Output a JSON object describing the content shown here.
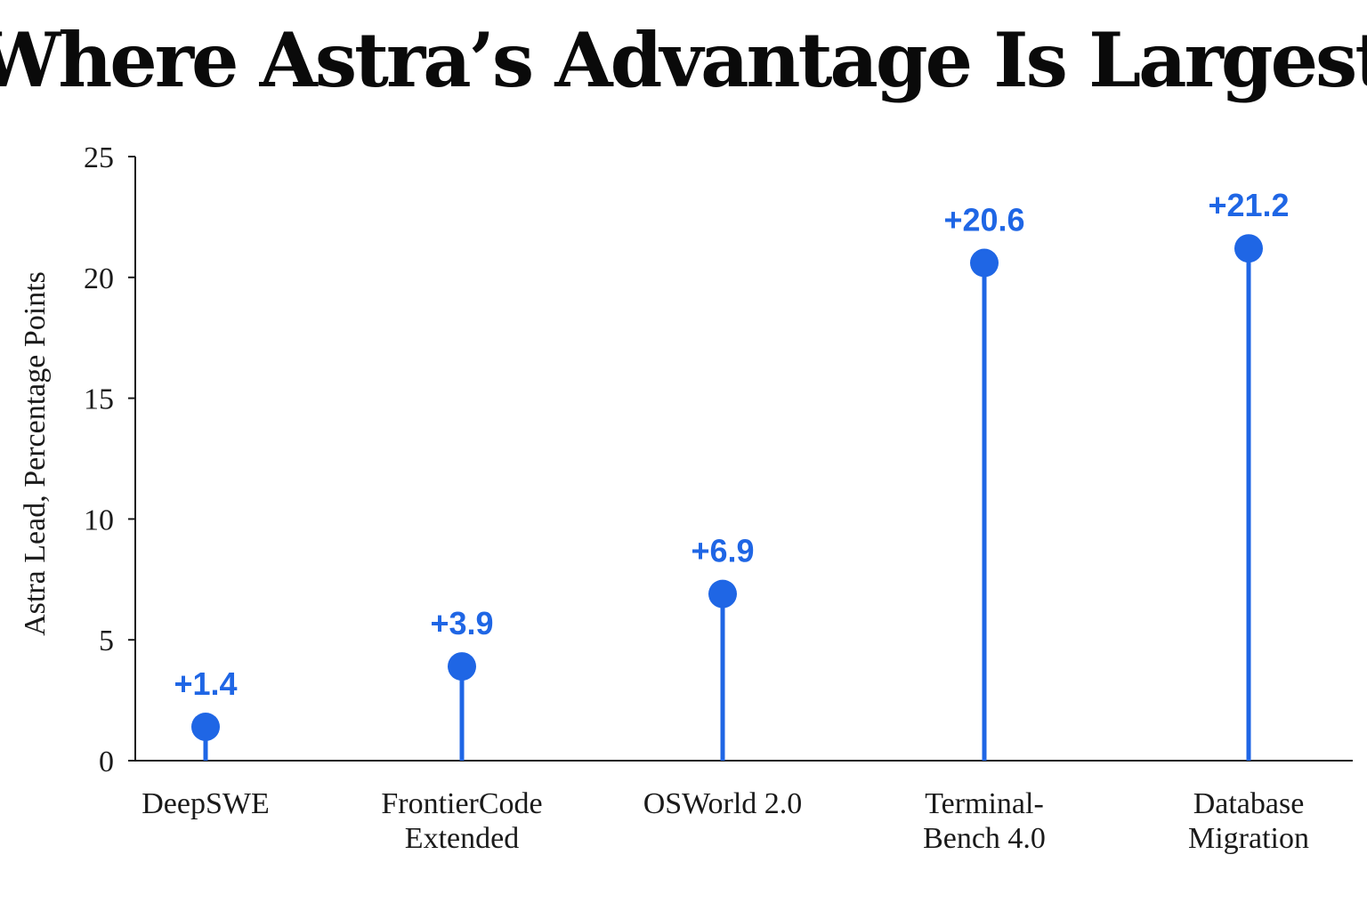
{
  "chart_data": {
    "type": "lollipop",
    "title": "Where Astra’s Advantage Is Largest",
    "ylabel": "Astra Lead, Percentage Points",
    "xlabel": "",
    "ylim": [
      0,
      25
    ],
    "yticks": [
      "0",
      "5",
      "10",
      "15",
      "20",
      "25"
    ],
    "categories": [
      [
        "DeepSWE"
      ],
      [
        "FrontierCode",
        "Extended"
      ],
      [
        "OSWorld 2.0"
      ],
      [
        "Terminal-",
        "Bench 4.0"
      ],
      [
        "Database",
        "Migration"
      ]
    ],
    "values": [
      1.4,
      3.9,
      6.9,
      20.6,
      21.2
    ],
    "value_labels": [
      "+1.4",
      "+3.9",
      "+6.9",
      "+20.6",
      "+21.2"
    ],
    "grid": false,
    "legend": "none",
    "colors": {
      "marker": "#1f66e5",
      "axis": "#1a1a1a",
      "title": "#0a0a0a"
    }
  }
}
